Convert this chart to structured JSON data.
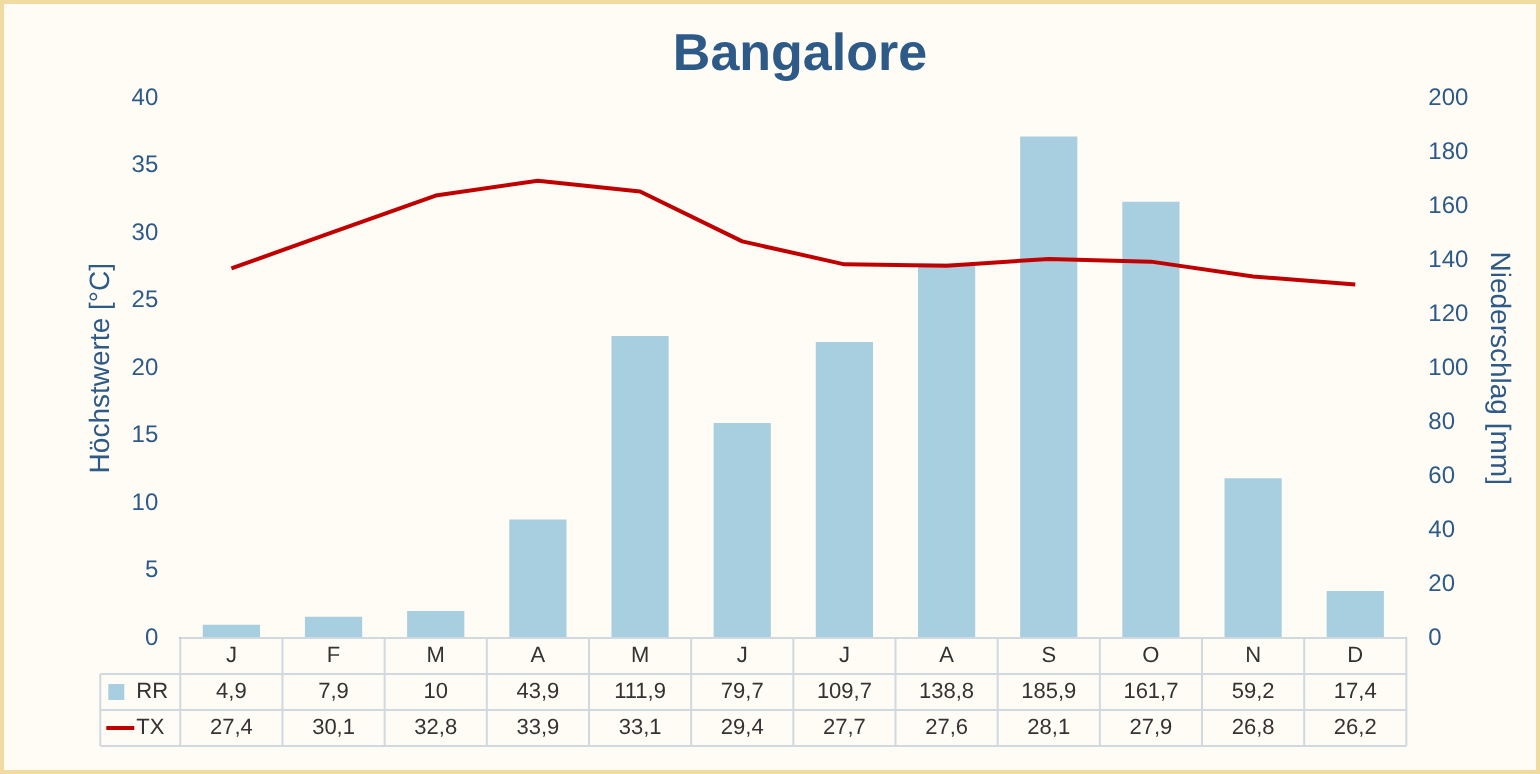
{
  "chart_data": {
    "type": "bar",
    "title": "Bangalore",
    "ylabel": "Höchstwerte [°C]",
    "y2label": "Niederschlag [mm]",
    "categories": [
      "J",
      "F",
      "M",
      "A",
      "M",
      "J",
      "J",
      "A",
      "S",
      "O",
      "N",
      "D"
    ],
    "series": [
      {
        "name": "RR",
        "axis": "y2",
        "color": "#a8cfe0",
        "values": [
          4.9,
          7.9,
          10,
          43.9,
          111.9,
          79.7,
          109.7,
          138.8,
          185.9,
          161.7,
          59.2,
          17.4
        ],
        "value_labels": [
          "4,9",
          "7,9",
          "10",
          "43,9",
          "111,9",
          "79,7",
          "109,7",
          "138,8",
          "185,9",
          "161,7",
          "59,2",
          "17,4"
        ]
      },
      {
        "name": "TX",
        "type": "line",
        "axis": "y",
        "color": "#c00000",
        "values": [
          27.4,
          30.1,
          32.8,
          33.9,
          33.1,
          29.4,
          27.7,
          27.6,
          28.1,
          27.9,
          26.8,
          26.2
        ],
        "value_labels": [
          "27,4",
          "30,1",
          "32,8",
          "33,9",
          "33,1",
          "29,4",
          "27,7",
          "27,6",
          "28,1",
          "27,9",
          "26,8",
          "26,2"
        ]
      }
    ],
    "ylim": [
      0,
      40
    ],
    "yticks": [
      0,
      5,
      10,
      15,
      20,
      25,
      30,
      35,
      40
    ],
    "y2lim": [
      0,
      200
    ],
    "y2ticks": [
      0,
      20,
      40,
      60,
      80,
      100,
      120,
      140,
      160,
      180,
      200
    ],
    "grid": false,
    "marker": "none",
    "legend": "bottom"
  }
}
